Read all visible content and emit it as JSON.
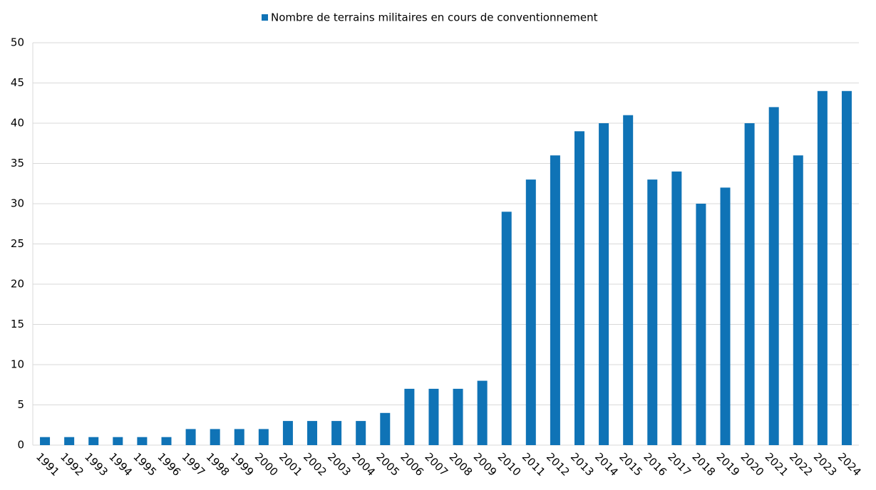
{
  "chart_data": {
    "type": "bar",
    "categories": [
      "1991",
      "1992",
      "1993",
      "1994",
      "1995",
      "1996",
      "1997",
      "1998",
      "1999",
      "2000",
      "2001",
      "2002",
      "2003",
      "2004",
      "2005",
      "2006",
      "2007",
      "2008",
      "2009",
      "2010",
      "2011",
      "2012",
      "2013",
      "2014",
      "2015",
      "2016",
      "2017",
      "2018",
      "2019",
      "2020",
      "2021",
      "2022",
      "2023",
      "2024"
    ],
    "series": [
      {
        "name": "Nombre de terrains militaires en cours de conventionnement",
        "color": "#0f73b6",
        "values": [
          1,
          1,
          1,
          1,
          1,
          1,
          2,
          2,
          2,
          2,
          3,
          3,
          3,
          3,
          4,
          7,
          7,
          7,
          8,
          29,
          33,
          36,
          39,
          40,
          41,
          33,
          34,
          30,
          32,
          40,
          42,
          36,
          44,
          44
        ]
      }
    ],
    "ylim": [
      0,
      50
    ],
    "yticks": [
      0,
      5,
      10,
      15,
      20,
      25,
      30,
      35,
      40,
      45,
      50
    ],
    "grid": true,
    "legend": "top"
  }
}
